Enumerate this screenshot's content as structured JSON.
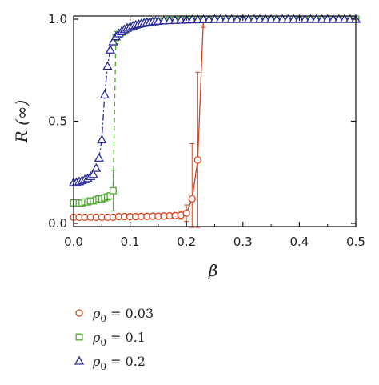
{
  "chart_data": {
    "type": "scatter",
    "xlabel": "β",
    "ylabel": "R (∞)",
    "xlim": [
      0,
      0.5
    ],
    "ylim": [
      0,
      1.0
    ],
    "x_ticks": [
      "0.0",
      "0.1",
      "0.2",
      "0.3",
      "0.4",
      "0.5"
    ],
    "y_ticks": [
      "0.0",
      "0.5",
      "1.0"
    ],
    "legend_position": "below-left",
    "series": [
      {
        "name": "ρ0 = 0.03",
        "name_symbol": "ρ",
        "name_subscript": "0",
        "name_value": "= 0.03",
        "color": "#d9421b",
        "marker": "circle",
        "line_style": "solid",
        "x": [
          0.0,
          0.01,
          0.02,
          0.03,
          0.04,
          0.05,
          0.06,
          0.07,
          0.08,
          0.09,
          0.1,
          0.11,
          0.12,
          0.13,
          0.14,
          0.15,
          0.16,
          0.17,
          0.18,
          0.19,
          0.2,
          0.21,
          0.22,
          0.23,
          0.24,
          0.25,
          0.26,
          0.27,
          0.28,
          0.29,
          0.3,
          0.31,
          0.32,
          0.33,
          0.34,
          0.35,
          0.36,
          0.37,
          0.38,
          0.39,
          0.4,
          0.41,
          0.42,
          0.43,
          0.44,
          0.45,
          0.46,
          0.47,
          0.48,
          0.49,
          0.5
        ],
        "y": [
          0.03,
          0.03,
          0.03,
          0.03,
          0.03,
          0.03,
          0.03,
          0.03,
          0.033,
          0.033,
          0.033,
          0.033,
          0.034,
          0.034,
          0.035,
          0.035,
          0.036,
          0.037,
          0.038,
          0.04,
          0.05,
          0.12,
          0.31,
          1.0,
          1.0,
          1.0,
          1.0,
          1.0,
          1.0,
          1.0,
          1.0,
          1.0,
          1.0,
          1.0,
          1.0,
          1.0,
          1.0,
          1.0,
          1.0,
          1.0,
          1.0,
          1.0,
          1.0,
          1.0,
          1.0,
          1.0,
          1.0,
          1.0,
          1.0,
          1.0,
          1.0
        ],
        "error": [
          0.0,
          0.0,
          0.0,
          0.0,
          0.0,
          0.0,
          0.0,
          0.0,
          0.0,
          0.0,
          0.0,
          0.0,
          0.0,
          0.0,
          0.0,
          0.0,
          0.0,
          0.0,
          0.0,
          0.02,
          0.04,
          0.27,
          0.43,
          0.04,
          0.0,
          0.0,
          0.0,
          0.0,
          0.0,
          0.0,
          0.0,
          0.0,
          0.0,
          0.0,
          0.0,
          0.0,
          0.0,
          0.0,
          0.0,
          0.0,
          0.0,
          0.0,
          0.0,
          0.0,
          0.0,
          0.0,
          0.0,
          0.0,
          0.0,
          0.0,
          0.0
        ]
      },
      {
        "name": "ρ0 = 0.1",
        "name_symbol": "ρ",
        "name_subscript": "0",
        "name_value": "= 0.1",
        "color": "#4faa2f",
        "marker": "square",
        "line_style": "dashed",
        "x": [
          0.0,
          0.005,
          0.01,
          0.015,
          0.02,
          0.025,
          0.03,
          0.035,
          0.04,
          0.045,
          0.05,
          0.055,
          0.06,
          0.065,
          0.07,
          0.075,
          0.08,
          0.085,
          0.09,
          0.095,
          0.1,
          0.105,
          0.11,
          0.115,
          0.12,
          0.125,
          0.13,
          0.135,
          0.14,
          0.145,
          0.15,
          0.16,
          0.17,
          0.18,
          0.19,
          0.2,
          0.21,
          0.22,
          0.23,
          0.24,
          0.25,
          0.26,
          0.27,
          0.28,
          0.29,
          0.3,
          0.31,
          0.32,
          0.33,
          0.34,
          0.35,
          0.36,
          0.37,
          0.38,
          0.39,
          0.4,
          0.41,
          0.42,
          0.43,
          0.44,
          0.45,
          0.46,
          0.47,
          0.48,
          0.49,
          0.5
        ],
        "y": [
          0.1,
          0.1,
          0.1,
          0.1,
          0.105,
          0.105,
          0.11,
          0.11,
          0.115,
          0.12,
          0.12,
          0.125,
          0.13,
          0.135,
          0.16,
          0.91,
          0.925,
          0.935,
          0.945,
          0.953,
          0.96,
          0.965,
          0.97,
          0.974,
          0.977,
          0.98,
          0.983,
          0.985,
          0.987,
          0.989,
          0.99,
          0.992,
          0.994,
          0.995,
          0.996,
          0.997,
          0.998,
          0.998,
          0.999,
          0.999,
          1.0,
          1.0,
          1.0,
          1.0,
          1.0,
          1.0,
          1.0,
          1.0,
          1.0,
          1.0,
          1.0,
          1.0,
          1.0,
          1.0,
          1.0,
          1.0,
          1.0,
          1.0,
          1.0,
          1.0,
          1.0,
          1.0,
          1.0,
          1.0,
          1.0,
          1.0
        ],
        "error": [
          0,
          0,
          0,
          0,
          0,
          0,
          0,
          0,
          0,
          0,
          0,
          0,
          0,
          0,
          0.1,
          0.03,
          0,
          0,
          0,
          0,
          0,
          0,
          0,
          0,
          0,
          0,
          0,
          0,
          0,
          0,
          0,
          0,
          0,
          0,
          0,
          0,
          0,
          0,
          0,
          0,
          0,
          0,
          0,
          0,
          0,
          0,
          0,
          0,
          0,
          0,
          0,
          0,
          0,
          0,
          0,
          0,
          0,
          0,
          0,
          0,
          0,
          0,
          0,
          0,
          0,
          0
        ]
      },
      {
        "name": "ρ0 = 0.2",
        "name_symbol": "ρ",
        "name_subscript": "0",
        "name_value": "= 0.2",
        "color": "#2b2a9a",
        "marker": "triangle",
        "line_style": "dashdot",
        "x": [
          0.0,
          0.005,
          0.01,
          0.015,
          0.02,
          0.025,
          0.03,
          0.035,
          0.04,
          0.045,
          0.05,
          0.055,
          0.06,
          0.065,
          0.07,
          0.075,
          0.08,
          0.085,
          0.09,
          0.095,
          0.1,
          0.105,
          0.11,
          0.115,
          0.12,
          0.125,
          0.13,
          0.135,
          0.14,
          0.145,
          0.15,
          0.16,
          0.17,
          0.18,
          0.19,
          0.2,
          0.21,
          0.22,
          0.23,
          0.24,
          0.25,
          0.26,
          0.27,
          0.28,
          0.29,
          0.3,
          0.31,
          0.32,
          0.33,
          0.34,
          0.35,
          0.36,
          0.37,
          0.38,
          0.39,
          0.4,
          0.41,
          0.42,
          0.43,
          0.44,
          0.45,
          0.46,
          0.47,
          0.48,
          0.49,
          0.5
        ],
        "y": [
          0.2,
          0.2,
          0.205,
          0.21,
          0.215,
          0.22,
          0.23,
          0.24,
          0.27,
          0.32,
          0.41,
          0.63,
          0.77,
          0.85,
          0.89,
          0.915,
          0.93,
          0.94,
          0.95,
          0.957,
          0.963,
          0.968,
          0.972,
          0.976,
          0.979,
          0.982,
          0.984,
          0.986,
          0.988,
          0.99,
          0.991,
          0.993,
          0.994,
          0.995,
          0.996,
          0.997,
          0.998,
          0.998,
          0.999,
          0.999,
          1.0,
          1.0,
          1.0,
          1.0,
          1.0,
          1.0,
          1.0,
          1.0,
          1.0,
          1.0,
          1.0,
          1.0,
          1.0,
          1.0,
          1.0,
          1.0,
          1.0,
          1.0,
          1.0,
          1.0,
          1.0,
          1.0,
          1.0,
          1.0,
          1.0,
          1.0
        ],
        "error": [
          0,
          0,
          0,
          0,
          0,
          0,
          0,
          0,
          0,
          0,
          0,
          0,
          0,
          0,
          0,
          0,
          0,
          0,
          0,
          0,
          0,
          0,
          0,
          0,
          0,
          0,
          0,
          0,
          0,
          0,
          0,
          0,
          0,
          0,
          0,
          0,
          0,
          0,
          0,
          0,
          0,
          0,
          0,
          0,
          0,
          0,
          0,
          0,
          0,
          0,
          0,
          0,
          0,
          0,
          0,
          0,
          0,
          0,
          0,
          0,
          0,
          0,
          0,
          0,
          0,
          0
        ]
      }
    ]
  }
}
